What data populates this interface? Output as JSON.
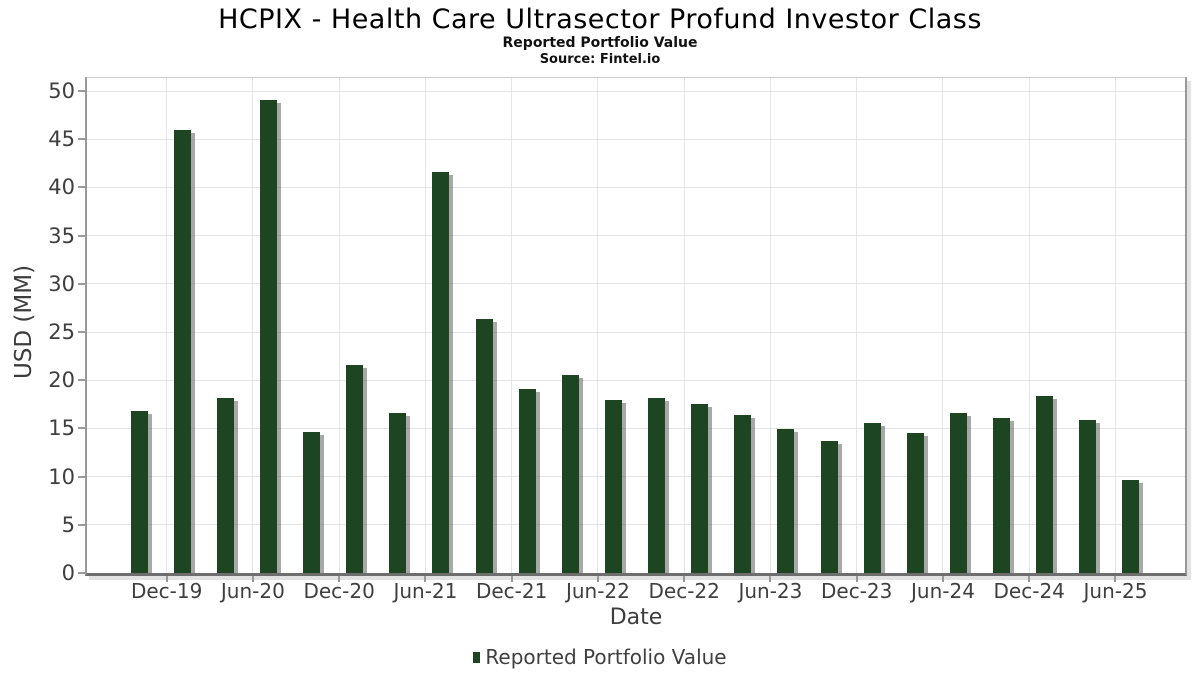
{
  "chart_data": {
    "type": "bar",
    "title": "HCPIX - Health Care Ultrasector Profund Investor Class",
    "subtitle": "Reported Portfolio Value",
    "source": "Source: Fintel.io",
    "xlabel": "Date",
    "ylabel": "USD (MM)",
    "legend": [
      "Reported Portfolio Value"
    ],
    "legend_position": "bottom",
    "grid": true,
    "bar_color": "#1d4522",
    "ylim": [
      0,
      51.4
    ],
    "y_ticks": [
      0,
      5,
      10,
      15,
      20,
      25,
      30,
      35,
      40,
      45,
      50
    ],
    "x_tick_labels": [
      "Dec-19",
      "Jun-20",
      "Dec-20",
      "Jun-21",
      "Dec-21",
      "Jun-22",
      "Dec-22",
      "Jun-23",
      "Dec-23",
      "Jun-24",
      "Dec-24",
      "Jun-25"
    ],
    "x_tick_bar_indices": [
      1,
      3,
      5,
      7,
      9,
      11,
      13,
      15,
      17,
      19,
      21,
      23
    ],
    "values": [
      16.8,
      46.0,
      18.2,
      49.1,
      14.6,
      21.6,
      16.6,
      41.6,
      26.4,
      19.1,
      20.5,
      17.9,
      18.2,
      17.5,
      16.4,
      14.9,
      13.7,
      15.6,
      14.5,
      16.6,
      16.1,
      18.4,
      15.9,
      9.6
    ]
  }
}
